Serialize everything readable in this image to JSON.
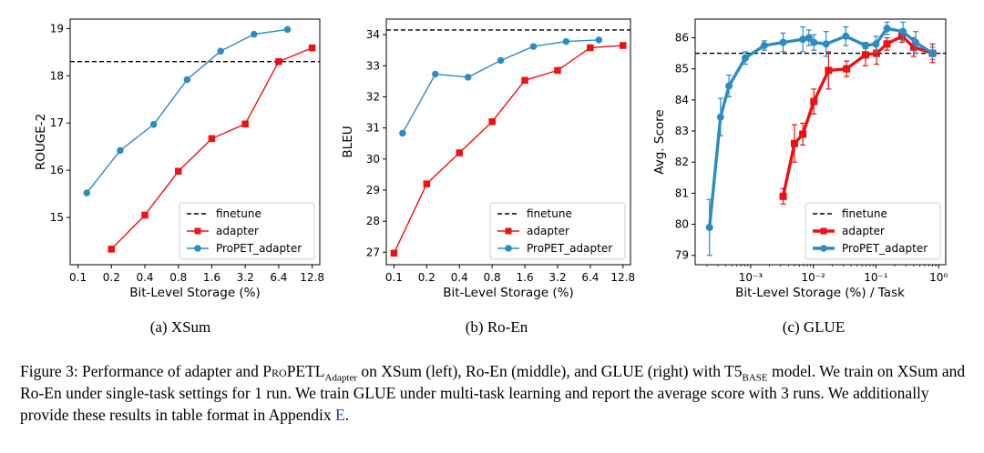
{
  "colors": {
    "finetune": "#000000",
    "adapter": "#ee1111",
    "propet": "#2b8cc4"
  },
  "legend": {
    "finetune": "finetune",
    "adapter": "adapter",
    "propet": "ProPET_adapter"
  },
  "chart_data": [
    {
      "type": "line",
      "subcaption": "(a) XSum",
      "xlabel": "Bit-Level Storage (%)",
      "ylabel": "ROUGE-2",
      "xscale": "log2",
      "xticks": [
        0.1,
        0.2,
        0.4,
        0.8,
        1.6,
        3.2,
        6.4,
        12.8
      ],
      "xtick_labels": [
        "0.1",
        "0.2",
        "0.4",
        "0.8",
        "1.6",
        "3.2",
        "6.4",
        "12.8"
      ],
      "xlim": [
        0.085,
        15
      ],
      "ylim": [
        14.0,
        19.2
      ],
      "yticks": [
        15,
        16,
        17,
        18,
        19
      ],
      "grid": false,
      "legend_position": "lower-right",
      "finetune": 18.3,
      "series": [
        {
          "name": "adapter",
          "x": [
            0.2,
            0.4,
            0.8,
            1.6,
            3.2,
            6.4,
            12.8
          ],
          "y": [
            14.33,
            15.05,
            15.98,
            16.67,
            16.98,
            18.3,
            18.59
          ]
        },
        {
          "name": "ProPET_adapter",
          "x": [
            0.12,
            0.24,
            0.48,
            0.96,
            1.92,
            3.84,
            7.68
          ],
          "y": [
            15.52,
            16.42,
            16.97,
            17.92,
            18.52,
            18.88,
            18.98
          ]
        }
      ]
    },
    {
      "type": "line",
      "subcaption": "(b) Ro-En",
      "xlabel": "Bit-Level Storage (%)",
      "ylabel": "BLEU",
      "xscale": "log2",
      "xticks": [
        0.1,
        0.2,
        0.4,
        0.8,
        1.6,
        3.2,
        6.4,
        12.8
      ],
      "xtick_labels": [
        "0.1",
        "0.2",
        "0.4",
        "0.8",
        "1.6",
        "3.2",
        "6.4",
        "12.8"
      ],
      "xlim": [
        0.085,
        15
      ],
      "ylim": [
        26.6,
        34.5
      ],
      "yticks": [
        27,
        28,
        29,
        30,
        31,
        32,
        33,
        34
      ],
      "grid": false,
      "legend_position": "lower-right",
      "finetune": 34.15,
      "series": [
        {
          "name": "adapter",
          "x": [
            0.1,
            0.2,
            0.4,
            0.8,
            1.6,
            3.2,
            6.4,
            12.8
          ],
          "y": [
            26.97,
            29.2,
            30.2,
            31.2,
            32.53,
            32.85,
            33.58,
            33.65
          ]
        },
        {
          "name": "ProPET_adapter",
          "x": [
            0.12,
            0.24,
            0.48,
            0.96,
            1.92,
            3.84,
            7.68
          ],
          "y": [
            30.83,
            32.73,
            32.63,
            33.17,
            33.62,
            33.78,
            33.83
          ]
        }
      ]
    },
    {
      "type": "line",
      "subcaption": "(c) GLUE",
      "xlabel": "Bit-Level Storage (%) / Task",
      "ylabel": "Avg. Score",
      "xscale": "log10",
      "xticks": [
        0.001,
        0.01,
        0.1,
        1
      ],
      "xtick_labels": [
        "10⁻³",
        "10⁻²",
        "10⁻¹",
        "10⁰"
      ],
      "xlim": [
        0.00013,
        1.3
      ],
      "ylim": [
        78.7,
        86.6
      ],
      "yticks": [
        79,
        80,
        81,
        82,
        83,
        84,
        85,
        86
      ],
      "grid": false,
      "legend_position": "lower-right",
      "finetune": 85.5,
      "series": [
        {
          "name": "adapter",
          "x": [
            0.0033,
            0.005,
            0.0068,
            0.0102,
            0.0175,
            0.034,
            0.068,
            0.102,
            0.15,
            0.26,
            0.4,
            0.8
          ],
          "y": [
            80.9,
            82.6,
            82.9,
            83.95,
            84.95,
            85.0,
            85.45,
            85.5,
            85.8,
            86.05,
            85.7,
            85.5
          ],
          "err": [
            0.25,
            0.6,
            0.35,
            0.4,
            0.6,
            0.25,
            0.35,
            0.35,
            0.2,
            0.2,
            0.3,
            0.3
          ]
        },
        {
          "name": "ProPET_adapter",
          "x": [
            0.00022,
            0.00033,
            0.00045,
            0.00082,
            0.00165,
            0.0033,
            0.0068,
            0.0085,
            0.0102,
            0.016,
            0.033,
            0.068,
            0.1,
            0.15,
            0.27,
            0.43,
            0.8
          ],
          "y": [
            79.9,
            83.45,
            84.45,
            85.35,
            85.75,
            85.85,
            85.95,
            86.0,
            85.85,
            85.8,
            86.05,
            85.75,
            85.8,
            86.3,
            86.2,
            85.85,
            85.5
          ],
          "err": [
            0.9,
            0.6,
            0.35,
            0.2,
            0.15,
            0.3,
            0.4,
            0.25,
            0.25,
            0.4,
            0.3,
            0.1,
            0.25,
            0.2,
            0.3,
            0.35,
            0.2
          ]
        }
      ]
    }
  ],
  "caption": {
    "prefix": "Figure 3: Performance of adapter and ",
    "method": "ProPETL",
    "method_sub": "Adapter",
    "middle": " on XSum (left), Ro-En (middle), and GLUE (right) with T5",
    "model_sub": "BASE",
    "rest": " model. We train on XSum and Ro-En under single-task settings for 1 run. We train GLUE under multi-task learning and report the average score with 3 runs. We additionally provide these results in table format in Appendix ",
    "appendix": "E",
    "end": "."
  }
}
